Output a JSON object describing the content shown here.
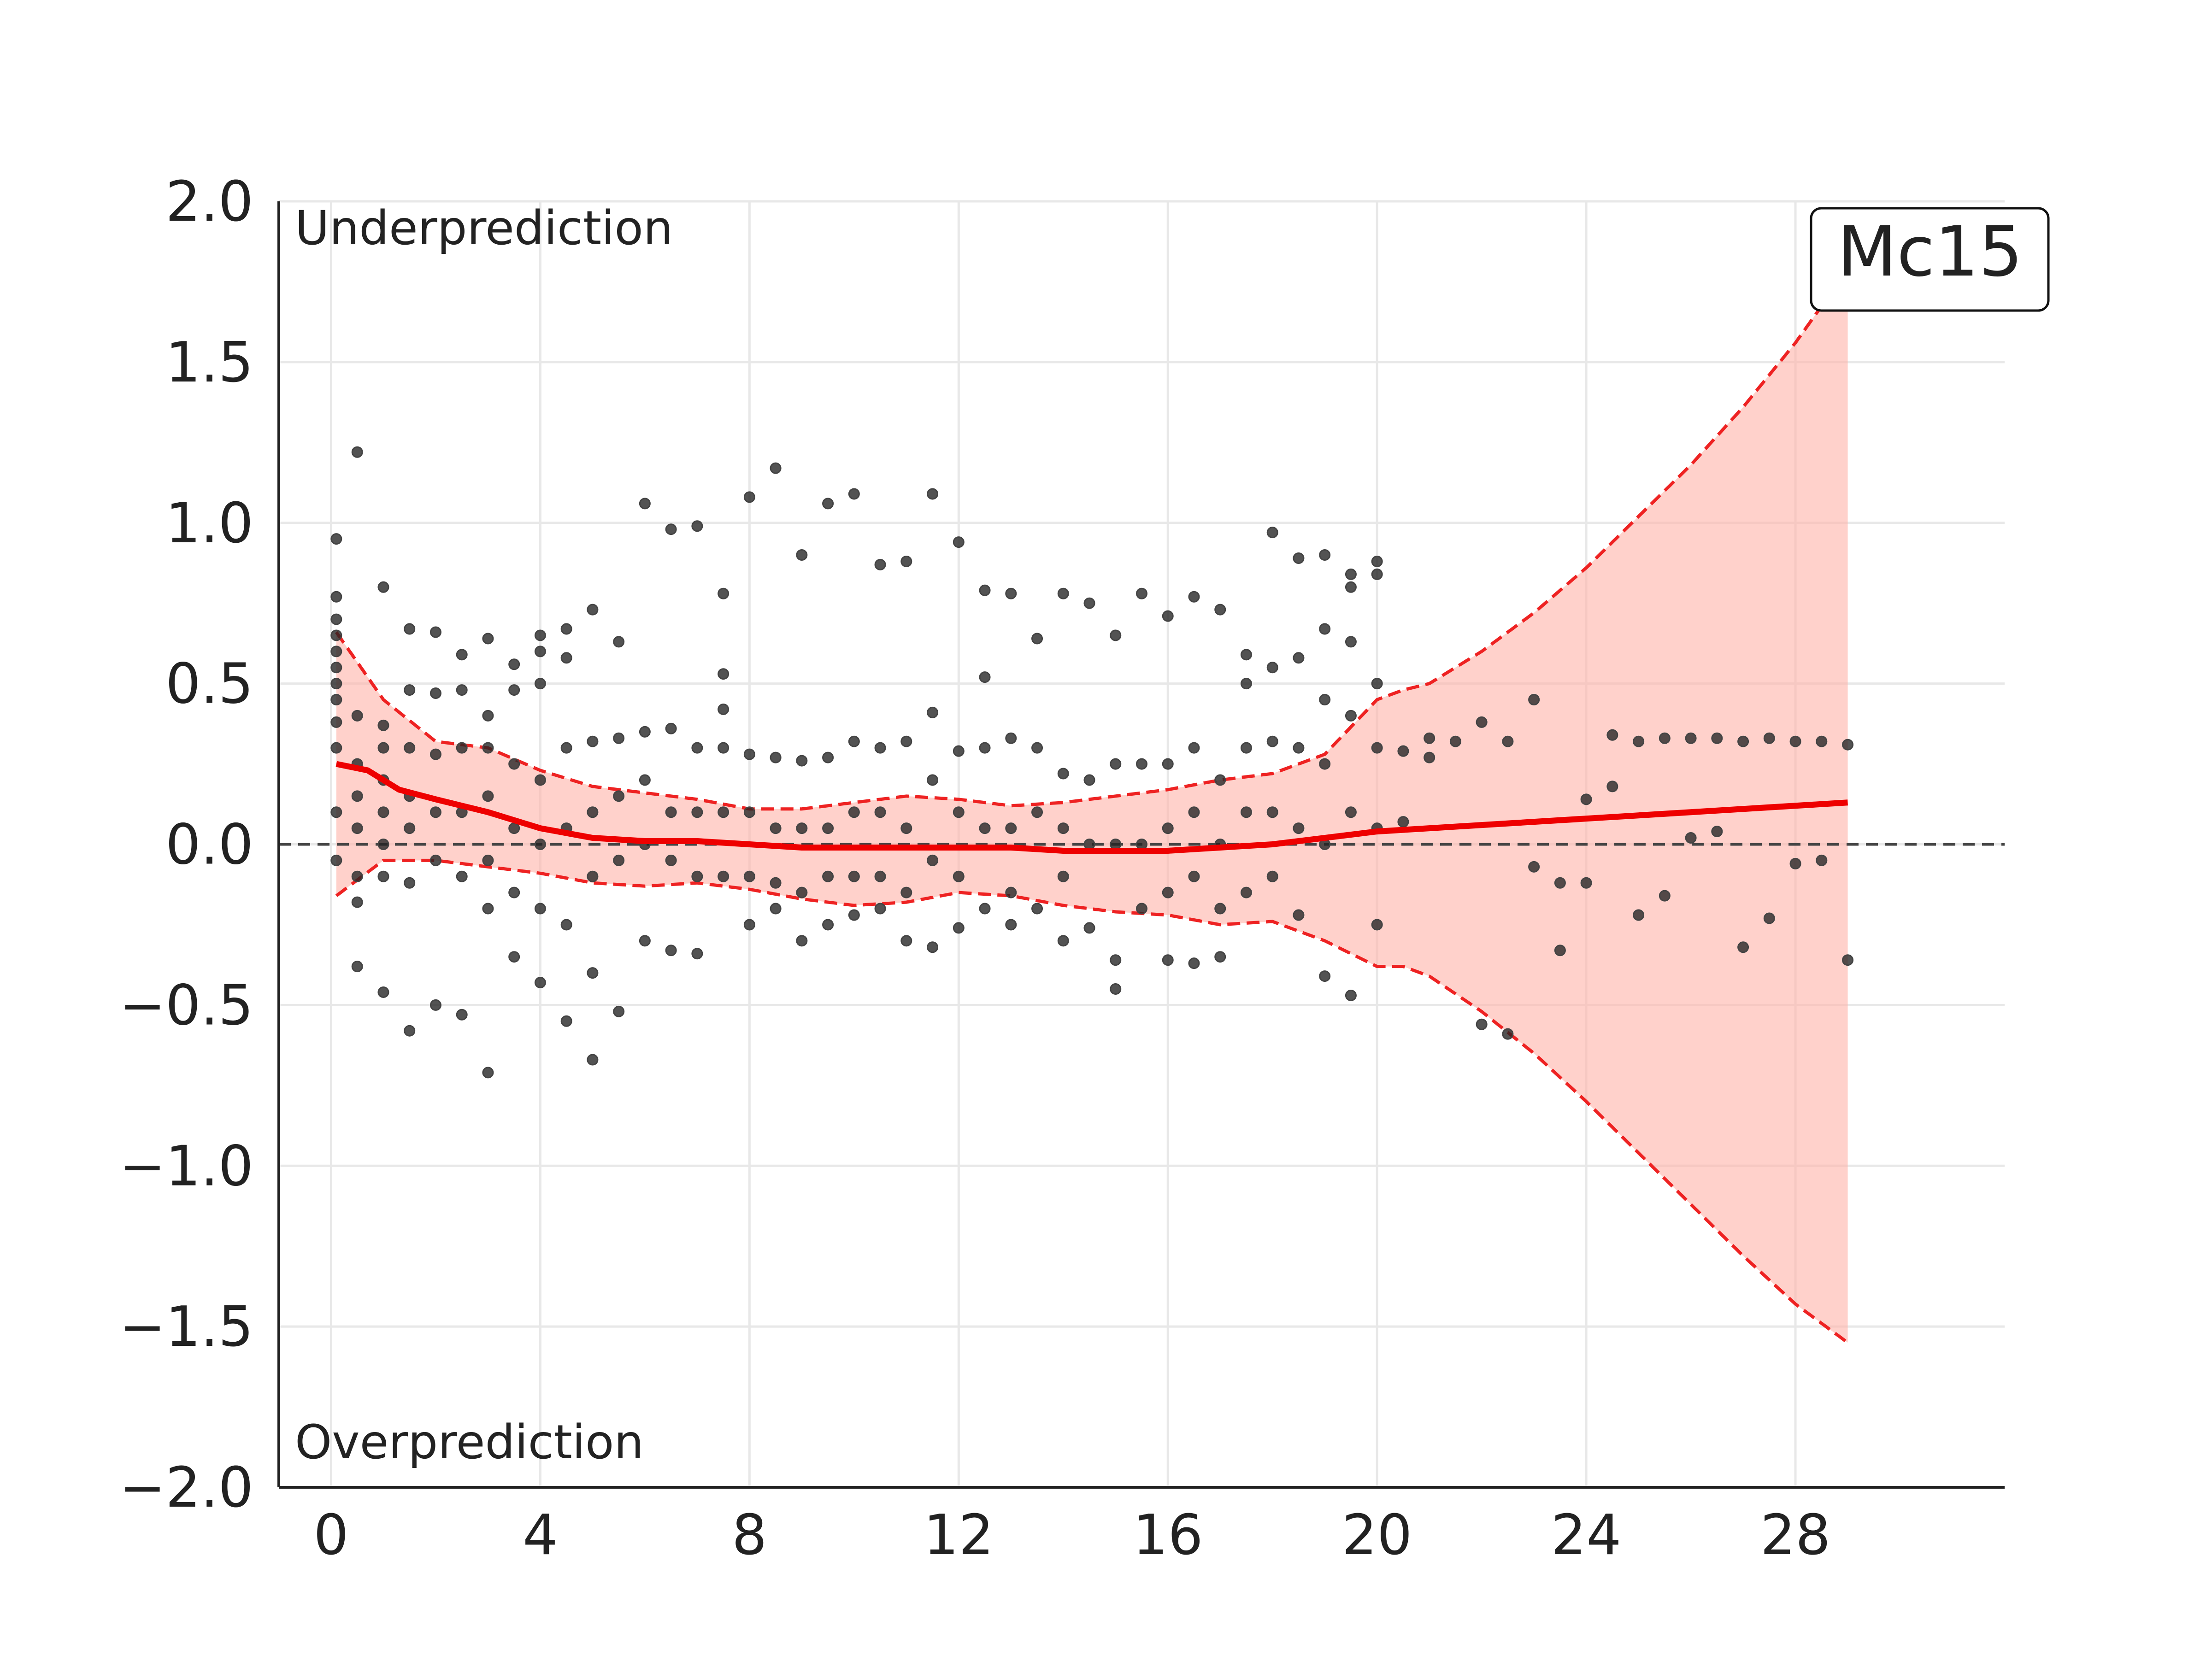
{
  "chart_data": {
    "type": "scatter",
    "title": "",
    "xlabel": "",
    "ylabel": "",
    "xlim": [
      -1,
      32
    ],
    "ylim": [
      -2.0,
      2.0
    ],
    "x_ticks": [
      0,
      4,
      8,
      12,
      16,
      20,
      24,
      28
    ],
    "y_ticks": [
      -2.0,
      -1.5,
      -1.0,
      -0.5,
      0.0,
      0.5,
      1.0,
      1.5,
      2.0
    ],
    "y_tick_labels": [
      "−2.0",
      "−1.5",
      "−1.0",
      "−0.5",
      "0.0",
      "0.5",
      "1.0",
      "1.5",
      "2.0"
    ],
    "grid": true,
    "reference_line_y": 0.0,
    "annotations": {
      "top_left": "Underprediction",
      "bottom_left": "Overprediction",
      "badge": "Mc15"
    },
    "colors": {
      "points": "#222222",
      "trend": "#ee0000",
      "band_fill": "#ffb3a8",
      "band_edge": "#ee2222",
      "reference": "#444444",
      "grid": "#e8e8e8"
    },
    "trend": {
      "x": [
        0.1,
        0.7,
        1.3,
        2,
        3,
        4,
        5,
        6,
        7,
        8,
        9,
        10,
        11,
        12,
        13,
        14,
        15,
        16,
        17,
        18,
        19,
        20,
        21,
        22,
        23,
        24,
        25,
        26,
        27,
        28,
        29
      ],
      "y": [
        0.25,
        0.23,
        0.17,
        0.14,
        0.1,
        0.05,
        0.02,
        0.01,
        0.01,
        0.0,
        -0.01,
        -0.01,
        -0.01,
        -0.01,
        -0.01,
        -0.02,
        -0.02,
        -0.02,
        -0.01,
        0.0,
        0.02,
        0.04,
        0.05,
        0.06,
        0.07,
        0.08,
        0.09,
        0.1,
        0.11,
        0.12,
        0.13
      ]
    },
    "band_upper": {
      "x": [
        0.1,
        1,
        2,
        3,
        4,
        5,
        6,
        7,
        8,
        9,
        10,
        11,
        12,
        13,
        14,
        15,
        16,
        17,
        18,
        19,
        20,
        20.5,
        21,
        22,
        23,
        24,
        25,
        26,
        27,
        28,
        28.7,
        29
      ],
      "y": [
        0.66,
        0.45,
        0.32,
        0.3,
        0.23,
        0.18,
        0.16,
        0.14,
        0.11,
        0.11,
        0.13,
        0.15,
        0.14,
        0.12,
        0.13,
        0.15,
        0.17,
        0.2,
        0.22,
        0.28,
        0.45,
        0.48,
        0.5,
        0.6,
        0.72,
        0.86,
        1.02,
        1.18,
        1.36,
        1.56,
        1.72,
        1.75
      ]
    },
    "band_lower": {
      "x": [
        0.1,
        1,
        2,
        3,
        4,
        5,
        6,
        7,
        8,
        9,
        10,
        11,
        12,
        13,
        14,
        15,
        16,
        17,
        18,
        19,
        20,
        20.5,
        21,
        22,
        23,
        24,
        25,
        26,
        27,
        28,
        29
      ],
      "y": [
        -0.16,
        -0.05,
        -0.05,
        -0.07,
        -0.09,
        -0.12,
        -0.13,
        -0.12,
        -0.14,
        -0.17,
        -0.19,
        -0.18,
        -0.15,
        -0.16,
        -0.19,
        -0.21,
        -0.22,
        -0.25,
        -0.24,
        -0.3,
        -0.38,
        -0.38,
        -0.41,
        -0.52,
        -0.65,
        -0.8,
        -0.96,
        -1.12,
        -1.28,
        -1.43,
        -1.55
      ]
    },
    "points": {
      "x": [
        0.1,
        0.1,
        0.1,
        0.1,
        0.1,
        0.1,
        0.1,
        0.1,
        0.1,
        0.1,
        0.1,
        0.1,
        0.5,
        0.5,
        0.5,
        0.5,
        0.5,
        0.5,
        0.5,
        0.5,
        1.0,
        1.0,
        1.0,
        1.0,
        1.0,
        1.0,
        1.0,
        1.0,
        1.5,
        1.5,
        1.5,
        1.5,
        1.5,
        1.5,
        1.5,
        2.0,
        2.0,
        2.0,
        2.0,
        2.0,
        2.0,
        2.5,
        2.5,
        2.5,
        2.5,
        2.5,
        2.5,
        3.0,
        3.0,
        3.0,
        3.0,
        3.0,
        3.0,
        3.0,
        3.5,
        3.5,
        3.5,
        3.5,
        3.5,
        3.5,
        4.0,
        4.0,
        4.0,
        4.0,
        4.0,
        4.0,
        4.0,
        4.5,
        4.5,
        4.5,
        4.5,
        4.5,
        4.5,
        5.0,
        5.0,
        5.0,
        5.0,
        5.0,
        5.0,
        5.5,
        5.5,
        5.5,
        5.5,
        5.5,
        6.0,
        6.0,
        6.0,
        6.0,
        6.0,
        6.5,
        6.5,
        6.5,
        6.5,
        6.5,
        7.0,
        7.0,
        7.0,
        7.0,
        7.0,
        7.5,
        7.5,
        7.5,
        7.5,
        7.5,
        7.5,
        8.0,
        8.0,
        8.0,
        8.0,
        8.0,
        8.5,
        8.5,
        8.5,
        8.5,
        8.5,
        9.0,
        9.0,
        9.0,
        9.0,
        9.0,
        9.5,
        9.5,
        9.5,
        9.5,
        9.5,
        10.0,
        10.0,
        10.0,
        10.0,
        10.0,
        10.5,
        10.5,
        10.5,
        10.5,
        10.5,
        11.0,
        11.0,
        11.0,
        11.0,
        11.0,
        11.5,
        11.5,
        11.5,
        11.5,
        11.5,
        12.0,
        12.0,
        12.0,
        12.0,
        12.0,
        12.5,
        12.5,
        12.5,
        12.5,
        12.5,
        13.0,
        13.0,
        13.0,
        13.0,
        13.0,
        13.5,
        13.5,
        13.5,
        13.5,
        14.0,
        14.0,
        14.0,
        14.0,
        14.0,
        14.5,
        14.5,
        14.5,
        14.5,
        15.0,
        15.0,
        15.0,
        15.0,
        15.0,
        15.5,
        15.5,
        15.5,
        15.5,
        16.0,
        16.0,
        16.0,
        16.0,
        16.0,
        16.5,
        16.5,
        16.5,
        16.5,
        16.5,
        17.0,
        17.0,
        17.0,
        17.0,
        17.0,
        17.5,
        17.5,
        17.5,
        17.5,
        17.5,
        18.0,
        18.0,
        18.0,
        18.0,
        18.0,
        18.5,
        18.5,
        18.5,
        18.5,
        18.5,
        19.0,
        19.0,
        19.0,
        19.0,
        19.0,
        19.0,
        19.5,
        19.5,
        19.5,
        19.5,
        19.5,
        19.5,
        20.0,
        20.0,
        20.0,
        20.0,
        20.0,
        20.0,
        20.5,
        20.5,
        21.0,
        21.0,
        21.5,
        22.0,
        22.0,
        22.5,
        22.5,
        23.0,
        23.0,
        23.5,
        23.5,
        24.0,
        24.0,
        24.5,
        24.5,
        25.0,
        25.0,
        25.5,
        25.5,
        26.0,
        26.0,
        26.5,
        26.5,
        27.0,
        27.0,
        27.5,
        27.5,
        28.0,
        28.0,
        28.5,
        28.5,
        29.0,
        29.0
      ],
      "y": [
        0.95,
        0.77,
        0.7,
        0.65,
        0.6,
        0.55,
        0.5,
        0.45,
        0.38,
        0.3,
        0.1,
        -0.05,
        1.22,
        0.4,
        0.25,
        0.15,
        0.05,
        -0.1,
        -0.18,
        -0.38,
        0.8,
        0.37,
        0.3,
        0.2,
        0.1,
        0.0,
        -0.1,
        -0.46,
        0.67,
        0.48,
        0.3,
        0.15,
        0.05,
        -0.12,
        -0.58,
        0.66,
        0.47,
        0.28,
        0.1,
        -0.05,
        -0.5,
        0.59,
        0.48,
        0.3,
        0.1,
        -0.1,
        -0.53,
        0.64,
        0.4,
        0.3,
        0.15,
        -0.05,
        -0.2,
        -0.71,
        0.56,
        0.48,
        0.25,
        0.05,
        -0.15,
        -0.35,
        0.65,
        0.6,
        0.5,
        0.2,
        0.0,
        -0.2,
        -0.43,
        0.67,
        0.58,
        0.3,
        0.05,
        -0.25,
        -0.55,
        0.73,
        0.32,
        0.1,
        -0.1,
        -0.4,
        -0.67,
        0.63,
        0.33,
        0.15,
        -0.05,
        -0.52,
        1.06,
        0.35,
        0.2,
        0.0,
        -0.3,
        0.98,
        0.36,
        0.1,
        -0.05,
        -0.33,
        0.99,
        0.3,
        0.1,
        -0.1,
        -0.34,
        0.78,
        0.53,
        0.42,
        0.3,
        0.1,
        -0.1,
        1.08,
        0.28,
        0.1,
        -0.1,
        -0.25,
        1.17,
        0.27,
        0.05,
        -0.12,
        -0.2,
        0.9,
        0.26,
        0.05,
        -0.15,
        -0.3,
        1.06,
        0.27,
        0.05,
        -0.1,
        -0.25,
        1.09,
        0.32,
        0.1,
        -0.1,
        -0.22,
        0.87,
        0.3,
        0.1,
        -0.1,
        -0.2,
        0.88,
        0.32,
        0.05,
        -0.15,
        -0.3,
        1.09,
        0.41,
        0.2,
        -0.05,
        -0.32,
        0.94,
        0.29,
        0.1,
        -0.1,
        -0.26,
        0.79,
        0.52,
        0.3,
        0.05,
        -0.2,
        0.78,
        0.33,
        0.05,
        -0.15,
        -0.25,
        0.64,
        0.3,
        0.1,
        -0.2,
        0.78,
        0.22,
        0.05,
        -0.1,
        -0.3,
        0.75,
        0.2,
        0.0,
        -0.26,
        0.65,
        0.25,
        0.0,
        -0.36,
        -0.45,
        0.78,
        0.25,
        0.0,
        -0.2,
        0.71,
        0.25,
        0.05,
        -0.15,
        -0.36,
        0.77,
        0.3,
        0.1,
        -0.1,
        -0.37,
        0.73,
        0.2,
        0.0,
        -0.2,
        -0.35,
        0.59,
        0.5,
        0.3,
        0.1,
        -0.15,
        0.97,
        0.55,
        0.32,
        0.1,
        -0.1,
        0.89,
        0.58,
        0.3,
        0.05,
        -0.22,
        0.9,
        0.67,
        0.45,
        0.25,
        0.0,
        -0.41,
        0.84,
        0.8,
        0.63,
        0.4,
        0.1,
        -0.47,
        0.88,
        0.84,
        0.5,
        0.3,
        0.05,
        -0.25,
        0.29,
        0.07,
        0.33,
        0.27,
        0.32,
        0.38,
        -0.56,
        0.32,
        -0.59,
        0.45,
        -0.07,
        -0.12,
        -0.33,
        0.14,
        -0.12,
        0.18,
        0.34,
        -0.22,
        0.32,
        -0.16,
        0.33,
        0.33,
        0.02,
        0.33,
        0.04,
        -0.32,
        0.32,
        -0.23,
        0.33,
        -0.06,
        0.32,
        -0.05,
        0.32,
        -0.36,
        0.31
      ]
    }
  }
}
